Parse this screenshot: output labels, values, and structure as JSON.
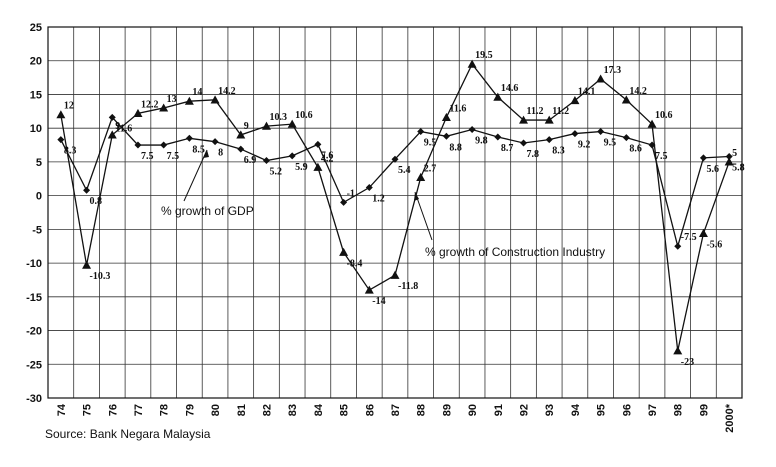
{
  "chart_data": {
    "type": "line",
    "categories": [
      "74",
      "75",
      "76",
      "77",
      "78",
      "79",
      "80",
      "81",
      "82",
      "83",
      "84",
      "85",
      "86",
      "87",
      "88",
      "89",
      "90",
      "91",
      "92",
      "93",
      "94",
      "95",
      "96",
      "97",
      "98",
      "99",
      "2000*"
    ],
    "ylim": [
      -30,
      25
    ],
    "yticks": [
      25,
      20,
      15,
      10,
      5,
      0,
      -5,
      -10,
      -15,
      -20,
      -25,
      -30
    ],
    "grid": true,
    "series": [
      {
        "name": "% growth of GDP",
        "marker": "diamond",
        "values": [
          8.3,
          0.8,
          11.6,
          7.5,
          7.5,
          8.5,
          8,
          6.9,
          5.2,
          5.9,
          7.6,
          -1,
          1.2,
          5.4,
          9.5,
          8.8,
          9.8,
          8.7,
          7.8,
          8.3,
          9.2,
          9.5,
          8.6,
          7.5,
          -7.5,
          5.6,
          5.8
        ],
        "labels": [
          "8.3",
          "0.8",
          "11.6",
          "7.5",
          "7.5",
          "8.5",
          "8",
          "6.9",
          "5.2",
          "5.9",
          "7.6",
          "-1",
          "1.2",
          "5.4",
          "9.5",
          "8.8",
          "9.8",
          "8.7",
          "7.8",
          "8.3",
          "9.2",
          "9.5",
          "8.6",
          "7.5",
          "-7.5",
          "5.6",
          "5.8"
        ]
      },
      {
        "name": "% growth of Construction Industry",
        "marker": "triangle",
        "values": [
          12,
          -10.3,
          9,
          12.2,
          13,
          14,
          14.2,
          9,
          10.3,
          10.6,
          4.2,
          -8.4,
          -14,
          -11.8,
          2.7,
          11.6,
          19.5,
          14.6,
          11.2,
          11.2,
          14.1,
          17.3,
          14.2,
          10.6,
          -23,
          -5.6,
          5
        ],
        "labels": [
          "12",
          "-10.3",
          "9",
          "12.2",
          "13",
          "14",
          "14.2",
          "9",
          "10.3",
          "10.6",
          "4.2",
          "-8.4",
          "-14",
          "-11.8",
          "2.7",
          "11.6",
          "19.5",
          "14.6",
          "11.2",
          "11.2",
          "14.1",
          "17.3",
          "14.2",
          "10.6",
          "-23",
          "-5.6",
          "5"
        ]
      }
    ],
    "annotations": [
      {
        "text": "% growth of GDP",
        "series": 0
      },
      {
        "text": "% growth of Construction Industry",
        "series": 1
      }
    ],
    "source": "Source: Bank Negara Malaysia"
  }
}
